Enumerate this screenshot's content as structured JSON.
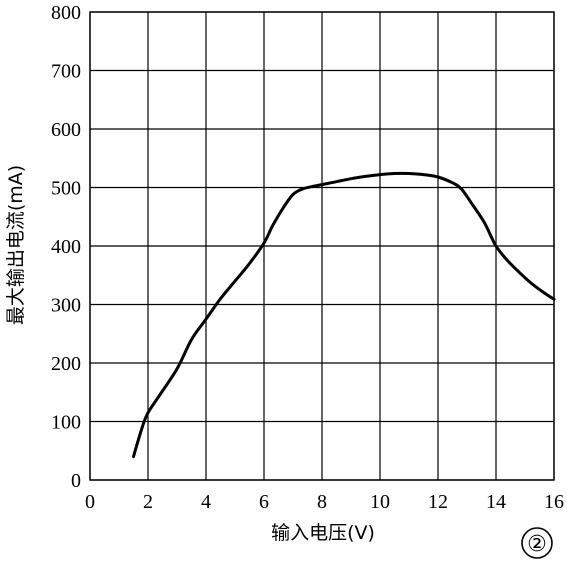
{
  "chart_data": {
    "type": "line",
    "xlabel": "输入电压(V)",
    "ylabel": "最大输出电流(mA)",
    "xlim": [
      0,
      16
    ],
    "ylim": [
      0,
      800
    ],
    "x_ticks": [
      "0",
      "2",
      "4",
      "6",
      "8",
      "10",
      "12",
      "14",
      "16"
    ],
    "y_ticks": [
      "0",
      "100",
      "200",
      "300",
      "400",
      "500",
      "600",
      "700",
      "800"
    ],
    "grid": true,
    "series": [
      {
        "x": [
          1.5,
          1.8,
          2.0,
          2.4,
          3.0,
          3.5,
          4.0,
          4.5,
          5.0,
          5.5,
          6.0,
          6.3,
          6.7,
          7.0,
          7.3,
          7.6,
          8.0,
          8.5,
          9.0,
          9.5,
          10.0,
          10.5,
          11.0,
          11.5,
          12.0,
          12.5,
          12.8,
          13.2,
          13.6,
          14.0,
          14.4,
          14.8,
          15.2,
          15.6,
          16.0
        ],
        "y": [
          40,
          90,
          115,
          145,
          190,
          240,
          275,
          310,
          340,
          370,
          405,
          435,
          468,
          488,
          497,
          501,
          505,
          510,
          515,
          519,
          522,
          524,
          524,
          522,
          518,
          508,
          498,
          470,
          440,
          400,
          375,
          355,
          337,
          322,
          309
        ]
      }
    ]
  },
  "figure_label": "②"
}
